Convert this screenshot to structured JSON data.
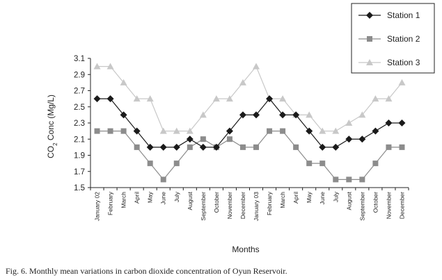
{
  "chart_data": {
    "type": "line",
    "title": "",
    "xlabel": "Months",
    "ylabel": "CO2 Conc (Mg/L)",
    "ylabel_parts": {
      "before": "CO",
      "sub": "2",
      "after": " Conc (Mg/L)"
    },
    "ylim": [
      1.5,
      3.1
    ],
    "yticks": [
      "1.5",
      "1.7",
      "1.9",
      "2.1",
      "2.3",
      "2.5",
      "2.7",
      "2.9",
      "3.1"
    ],
    "grid": false,
    "legend_position": "top-right",
    "categories": [
      "January 02",
      "February",
      "March",
      "April",
      "May",
      "June",
      "July",
      "August",
      "September",
      "October",
      "November",
      "December",
      "January 03",
      "February",
      "March",
      "April",
      "May",
      "June",
      "July",
      "August",
      "September",
      "October",
      "November",
      "December"
    ],
    "series": [
      {
        "name": "Station 1",
        "color": "#1a1a1a",
        "marker": "diamond",
        "values": [
          2.6,
          2.6,
          2.4,
          2.2,
          2.0,
          2.0,
          2.0,
          2.1,
          2.0,
          2.0,
          2.2,
          2.4,
          2.4,
          2.6,
          2.4,
          2.4,
          2.2,
          2.0,
          2.0,
          2.1,
          2.1,
          2.2,
          2.3,
          2.3
        ]
      },
      {
        "name": "Station 2",
        "color": "#8c8c8c",
        "marker": "square",
        "values": [
          2.2,
          2.2,
          2.2,
          2.0,
          1.8,
          1.6,
          1.8,
          2.0,
          2.1,
          2.0,
          2.1,
          2.0,
          2.0,
          2.2,
          2.2,
          2.0,
          1.8,
          1.8,
          1.6,
          1.6,
          1.6,
          1.8,
          2.0,
          2.0
        ]
      },
      {
        "name": "Station 3",
        "color": "#c8c8c8",
        "marker": "triangle",
        "values": [
          3.0,
          3.0,
          2.8,
          2.6,
          2.6,
          2.2,
          2.2,
          2.2,
          2.4,
          2.6,
          2.6,
          2.8,
          3.0,
          2.6,
          2.6,
          2.4,
          2.4,
          2.2,
          2.2,
          2.3,
          2.4,
          2.6,
          2.6,
          2.8
        ]
      }
    ]
  },
  "caption": "Fig. 6. Monthly mean variations in carbon dioxide concentration of Oyun Reservoir."
}
